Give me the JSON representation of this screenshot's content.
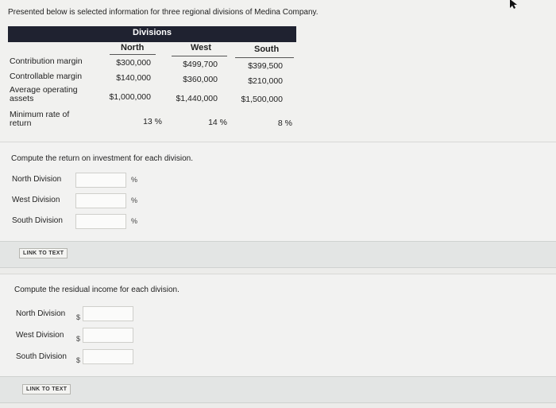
{
  "intro": "Presented below is selected information for three regional divisions of Medina Company.",
  "table": {
    "group_header": "Divisions",
    "columns": [
      "North",
      "West",
      "South"
    ],
    "rows": [
      {
        "label": "Contribution margin",
        "values": [
          "$300,000",
          "$499,700",
          "$399,500"
        ]
      },
      {
        "label": "Controllable margin",
        "values": [
          "$140,000",
          "$360,000",
          "$210,000"
        ]
      },
      {
        "label_line1": "Average operating",
        "label_line2": "assets",
        "values": [
          "$1,000,000",
          "$1,440,000",
          "$1,500,000"
        ]
      },
      {
        "label_line1": "Minimum rate of",
        "label_line2": "return",
        "values": [
          "13 %",
          "14 %",
          "8 %"
        ]
      }
    ]
  },
  "roi": {
    "question": "Compute the return on investment for each division.",
    "fields": [
      {
        "label": "North Division",
        "unit": "%",
        "value": ""
      },
      {
        "label": "West Division",
        "unit": "%",
        "value": ""
      },
      {
        "label": "South Division",
        "unit": "%",
        "value": ""
      }
    ],
    "link_label": "LINK TO TEXT"
  },
  "residual": {
    "question": "Compute the residual income for each division.",
    "fields": [
      {
        "label": "North Division",
        "unit": "$",
        "value": ""
      },
      {
        "label": "West Division",
        "unit": "$",
        "value": ""
      },
      {
        "label": "South Division",
        "unit": "$",
        "value": ""
      }
    ],
    "link_label": "LINK TO TEXT"
  }
}
